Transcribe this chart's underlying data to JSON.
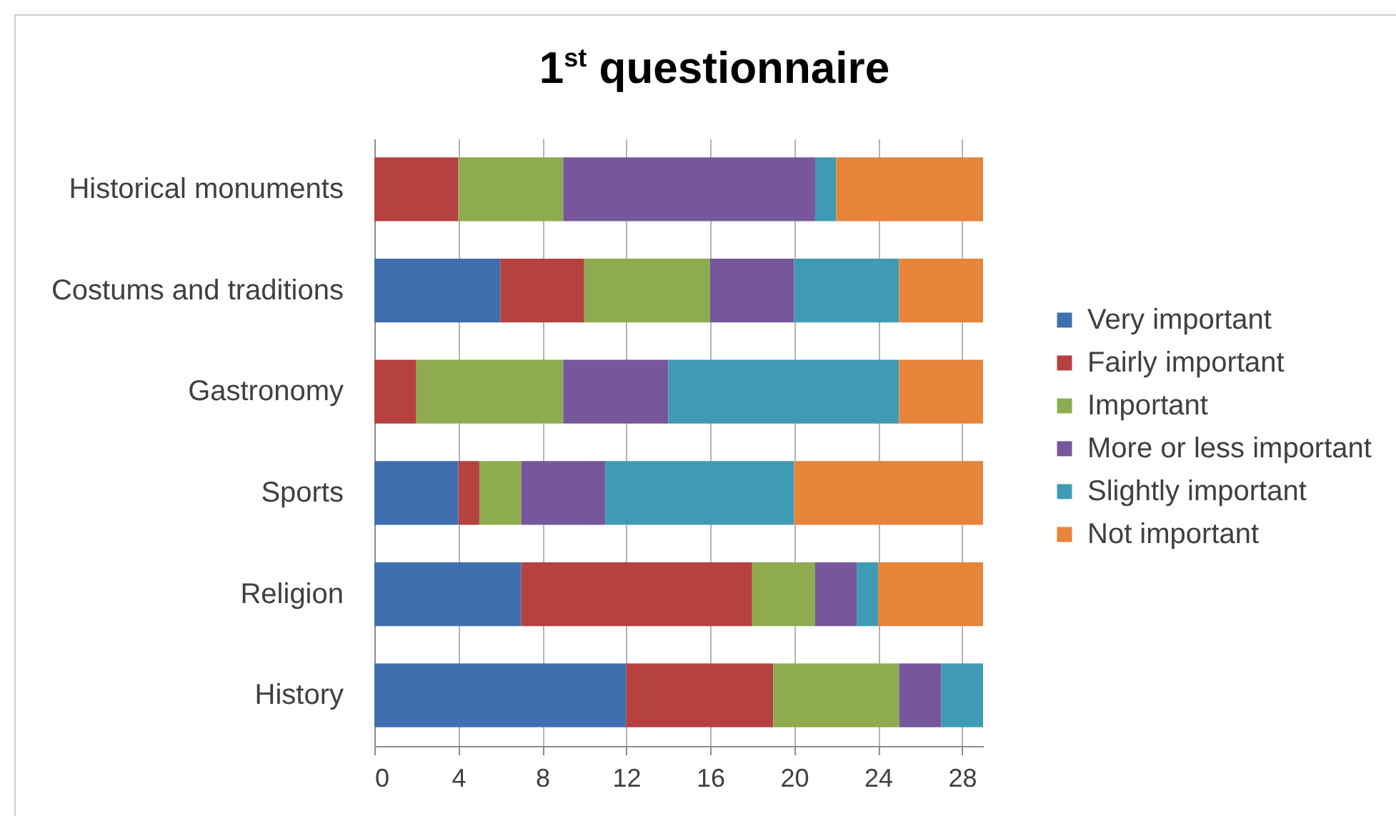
{
  "chart_data": {
    "type": "bar",
    "title": "1$^{st}$ questionnaire",
    "orientation": "horizontal",
    "stacked": true,
    "categories": [
      "Historical monuments",
      "Costums and traditions",
      "Gastronomy",
      "Sports",
      "Religion",
      "History"
    ],
    "series": [
      {
        "name": "Very important",
        "color": "#3f6fae",
        "values": [
          0,
          6,
          0,
          4,
          7,
          12
        ]
      },
      {
        "name": "Fairly important",
        "color": "#b54141",
        "values": [
          4,
          4,
          2,
          1,
          11,
          7
        ]
      },
      {
        "name": "Important",
        "color": "#8eac4f",
        "values": [
          5,
          6,
          7,
          2,
          3,
          6
        ]
      },
      {
        "name": "More or less important",
        "color": "#76579b",
        "values": [
          12,
          4,
          5,
          4,
          2,
          2
        ]
      },
      {
        "name": "Slightly important",
        "color": "#3f9bb5",
        "values": [
          1,
          5,
          11,
          9,
          1,
          2
        ]
      },
      {
        "name": "Not important",
        "color": "#e6843a",
        "values": [
          7,
          4,
          4,
          9,
          5,
          0
        ]
      }
    ],
    "xlim": [
      0,
      29
    ],
    "xticks": [
      0,
      4,
      8,
      12,
      16,
      20,
      24,
      28
    ],
    "grid": "x",
    "legend": "right"
  }
}
